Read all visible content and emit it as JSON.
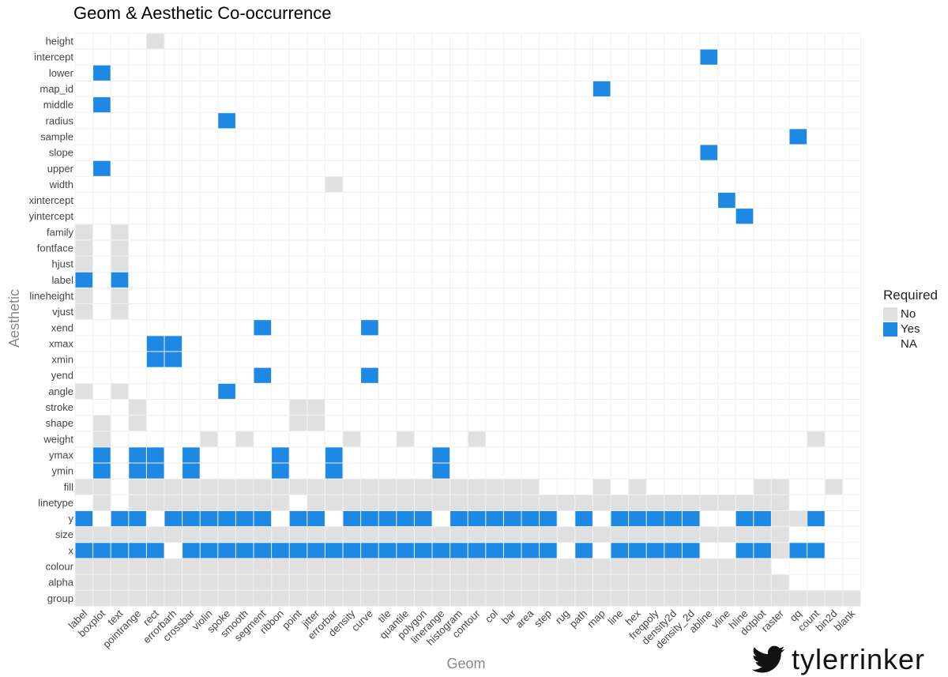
{
  "chart_data": {
    "type": "heatmap",
    "title": "Geom & Aesthetic Co-occurrence",
    "xlabel": "Geom",
    "ylabel": "Aesthetic",
    "legend": {
      "title": "Required",
      "position": "right",
      "entries": [
        {
          "label": "No",
          "color": "#e0e0e0"
        },
        {
          "label": "Yes",
          "color": "#1e88e5"
        },
        {
          "label": "NA",
          "color": "#ffffff"
        }
      ]
    },
    "geoms": [
      "label",
      "boxplot",
      "text",
      "pointrange",
      "rect",
      "errorbarh",
      "crossbar",
      "violin",
      "spoke",
      "smooth",
      "segment",
      "ribbon",
      "point",
      "jitter",
      "errorbar",
      "density",
      "curve",
      "tile",
      "quantile",
      "polygon",
      "linerange",
      "histogram",
      "contour",
      "col",
      "bar",
      "area",
      "step",
      "rug",
      "path",
      "map",
      "line",
      "hex",
      "freqpoly",
      "density2d",
      "density_2d",
      "abline",
      "vline",
      "hline",
      "dotplot",
      "raster",
      "qq",
      "count",
      "bin2d",
      "blank"
    ],
    "aesthetics": [
      "height",
      "intercept",
      "lower",
      "map_id",
      "middle",
      "radius",
      "sample",
      "slope",
      "upper",
      "width",
      "xintercept",
      "yintercept",
      "family",
      "fontface",
      "hjust",
      "label",
      "lineheight",
      "vjust",
      "xend",
      "xmax",
      "xmin",
      "yend",
      "angle",
      "stroke",
      "shape",
      "weight",
      "ymax",
      "ymin",
      "fill",
      "linetype",
      "y",
      "size",
      "x",
      "colour",
      "alpha",
      "group"
    ],
    "legend_codes": {
      "N": "No",
      "Y": "Yes",
      ".": "NA"
    },
    "matrix": [
      "....N.......................................",
      "...................................Y........",
      ".Y..........................................",
      ".............................Y..............",
      ".Y..........................................",
      "........Y...................................",
      "........................................Y...",
      "...................................Y........",
      ".Y..........................................",
      "..............N.............................",
      "....................................Y.......",
      ".....................................Y......",
      "N.N.........................................",
      "N.N.........................................",
      "N.N.........................................",
      "Y.Y.........................................",
      "N.N.........................................",
      "N.N.........................................",
      "..........Y.....Y...........................",
      "....YY......................................",
      "....YY......................................",
      "..........Y.....Y...........................",
      "N.N.....Y...................................",
      "...N........NN..............................",
      ".N.N........NN..............................",
      ".N.....N.N.....N..N...N..................N..",
      ".Y.YY.Y....Y..Y.....Y.......................",
      ".Y.YY.Y....Y..Y.....Y.......................",
      "NN.NNNNNNNNNNNNNNNNNNNNNNN...N.N......NN..N.",
      ".N.NNNNNNNNN.NNNNNNNNNNNNNNNNNNNNNNNNNNN....",
      "Y.YY.YYYYYY.YY.YYYYY.YYYYYY.Y.YYYYY..YYNNY.",
      "NNNNNNNNNNNNNNNNNNNNNNNNNNNNNNNNNNNNNNNN....",
      "YYYYY.YYYYYYYYYYYYYYYYYYYYY.Y.YYYYY..YYNYY.",
      "NNNNNNNNNNNNNNNNNNNNNNNNNNNNNNNNNNNNNNN.....",
      "NNNNNNNNNNNNNNNNNNNNNNNNNNNNNNNNNNNNNNNN....",
      "NNNNNNNNNNNNNNNNNNNNNNNNNNNNNNNNNNNNNNNNNNNN"
    ]
  },
  "credit": {
    "icon": "bird-logo-icon",
    "handle": "tylerrinker"
  }
}
